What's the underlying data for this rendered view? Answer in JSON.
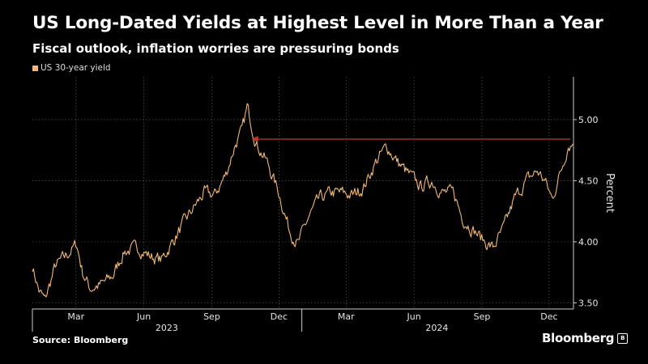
{
  "title": "US Long-Dated Yields at Highest Level in More Than a Year",
  "subtitle": "Fiscal outlook, inflation worries are pressuring bonds",
  "source": "Source: Bloomberg",
  "brand": "Bloomberg",
  "chart_data": {
    "type": "line",
    "ylabel": "Percent",
    "ylim": [
      3.45,
      5.35
    ],
    "yticks": [
      3.5,
      4.0,
      4.5,
      5.0
    ],
    "ytick_labels": [
      "3.50",
      "4.00",
      "4.50",
      "5.00"
    ],
    "grid": true,
    "legend_position": "top-left",
    "x_months": [
      "Mar",
      "Jun",
      "Sep",
      "Dec",
      "Mar",
      "Jun",
      "Sep",
      "Dec"
    ],
    "x_years": [
      "2023",
      "2024"
    ],
    "series": [
      {
        "name": "US 30-year yield",
        "color": "#f2b872",
        "x": [
          "2023-01-01",
          "2023-01-10",
          "2023-01-18",
          "2023-02-01",
          "2023-02-15",
          "2023-03-02",
          "2023-03-10",
          "2023-03-20",
          "2023-04-05",
          "2023-04-20",
          "2023-05-05",
          "2023-05-25",
          "2023-06-10",
          "2023-06-25",
          "2023-07-10",
          "2023-07-25",
          "2023-08-10",
          "2023-08-22",
          "2023-09-05",
          "2023-09-20",
          "2023-10-03",
          "2023-10-12",
          "2023-10-19",
          "2023-11-01",
          "2023-11-15",
          "2023-12-01",
          "2023-12-15",
          "2023-12-27",
          "2024-01-10",
          "2024-01-25",
          "2024-02-10",
          "2024-02-25",
          "2024-03-10",
          "2024-03-25",
          "2024-04-10",
          "2024-04-25",
          "2024-05-10",
          "2024-05-25",
          "2024-06-10",
          "2024-06-25",
          "2024-07-10",
          "2024-07-25",
          "2024-08-05",
          "2024-08-20",
          "2024-09-05",
          "2024-09-16",
          "2024-09-30",
          "2024-10-15",
          "2024-10-31",
          "2024-11-15",
          "2024-11-25",
          "2024-12-05",
          "2024-12-18",
          "2024-12-27",
          "2025-01-02"
        ],
        "values": [
          3.8,
          3.6,
          3.52,
          3.8,
          3.88,
          3.98,
          3.75,
          3.62,
          3.65,
          3.72,
          3.92,
          3.95,
          3.88,
          3.85,
          4.0,
          4.15,
          4.3,
          4.4,
          4.38,
          4.55,
          4.8,
          4.9,
          5.1,
          4.8,
          4.65,
          4.4,
          4.1,
          3.98,
          4.2,
          4.35,
          4.4,
          4.4,
          4.38,
          4.45,
          4.65,
          4.78,
          4.65,
          4.55,
          4.45,
          4.5,
          4.4,
          4.4,
          4.2,
          4.1,
          4.0,
          3.95,
          4.1,
          4.35,
          4.5,
          4.58,
          4.5,
          4.35,
          4.6,
          4.8,
          4.8
        ]
      }
    ],
    "annotation": {
      "type": "arrow",
      "from": {
        "x": "2024-12-30",
        "y": 4.84
      },
      "to": {
        "x": "2023-10-25",
        "y": 4.84
      },
      "color": "#c0392b"
    }
  }
}
